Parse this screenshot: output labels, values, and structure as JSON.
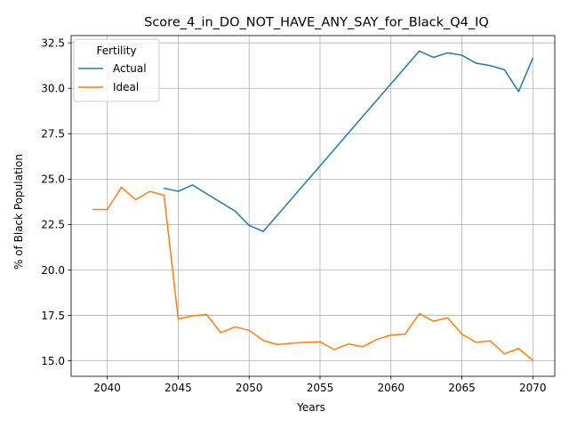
{
  "chart_data": {
    "type": "line",
    "title": "Score_4_in_DO_NOT_HAVE_ANY_SAY_for_Black_Q4_IQ",
    "xlabel": "Years",
    "ylabel": "% of Black Population",
    "xlim": [
      2037.45,
      2071.55
    ],
    "ylim": [
      14.15,
      32.9
    ],
    "xticks": [
      2040,
      2045,
      2050,
      2055,
      2060,
      2065,
      2070
    ],
    "xtick_labels": [
      "2040",
      "2045",
      "2050",
      "2055",
      "2060",
      "2065",
      "2070"
    ],
    "yticks": [
      15.0,
      17.5,
      20.0,
      22.5,
      25.0,
      27.5,
      30.0,
      32.5
    ],
    "ytick_labels": [
      "15.0",
      "17.5",
      "20.0",
      "22.5",
      "25.0",
      "27.5",
      "30.0",
      "32.5"
    ],
    "grid": true,
    "legend": {
      "title": "Fertility",
      "placement": "top-left"
    },
    "series": [
      {
        "name": "Actual",
        "color": "#1f77b4",
        "x": [
          2044,
          2045,
          2046,
          2047,
          2048,
          2049,
          2050,
          2051,
          2062,
          2063,
          2064,
          2065,
          2066,
          2067,
          2068,
          2069,
          2070
        ],
        "values": [
          24.5,
          24.33,
          24.68,
          24.2,
          23.72,
          23.25,
          22.45,
          22.12,
          32.05,
          31.7,
          31.95,
          31.82,
          31.38,
          31.25,
          31.02,
          29.82,
          31.65
        ]
      },
      {
        "name": "Ideal",
        "color": "#ff7f0e",
        "x": [
          2039,
          2040,
          2041,
          2042,
          2043,
          2044,
          2045,
          2046,
          2047,
          2048,
          2049,
          2050,
          2051,
          2052,
          2053,
          2054,
          2055,
          2056,
          2057,
          2058,
          2059,
          2060,
          2061,
          2062,
          2063,
          2064,
          2065,
          2066,
          2067,
          2068,
          2069,
          2070
        ],
        "values": [
          23.33,
          23.33,
          24.55,
          23.87,
          24.32,
          24.12,
          17.3,
          17.48,
          17.55,
          16.55,
          16.87,
          16.68,
          16.12,
          15.9,
          15.97,
          16.02,
          16.05,
          15.62,
          15.93,
          15.77,
          16.18,
          16.42,
          16.47,
          17.6,
          17.18,
          17.37,
          16.47,
          16.02,
          16.1,
          15.38,
          15.68,
          15.03
        ]
      }
    ]
  }
}
